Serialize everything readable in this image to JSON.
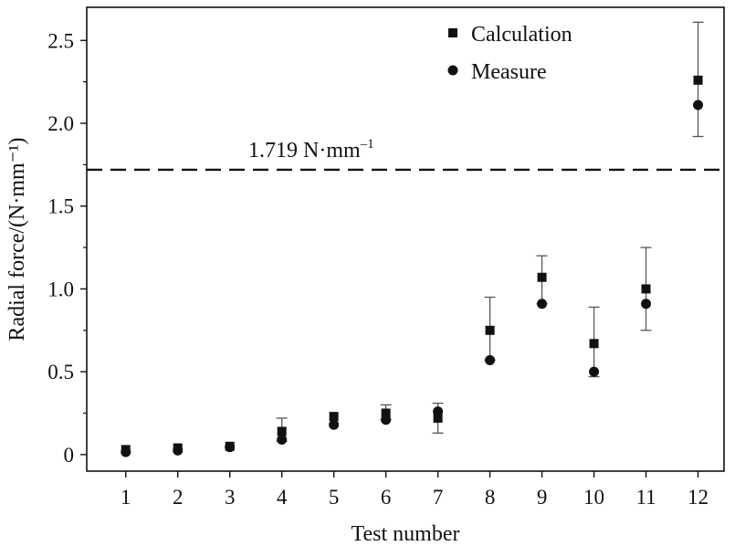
{
  "chart_data": {
    "type": "scatter",
    "title": "",
    "xlabel": "Test number",
    "ylabel": "Radial force/(N·mm⁻¹)",
    "xlim": [
      0.25,
      12.5
    ],
    "ylim": [
      -0.1,
      2.7
    ],
    "x_ticks": [
      1,
      2,
      3,
      4,
      5,
      6,
      7,
      8,
      9,
      10,
      11,
      12
    ],
    "x_tick_labels": [
      "1",
      "2",
      "3",
      "4",
      "5",
      "6",
      "7",
      "8",
      "9",
      "10",
      "11",
      "12"
    ],
    "y_ticks": [
      0,
      0.5,
      1.0,
      1.5,
      2.0,
      2.5
    ],
    "y_tick_labels": [
      "0",
      "0.5",
      "1.0",
      "1.5",
      "2.0",
      "2.5"
    ],
    "grid": false,
    "legend_position": "top-right",
    "series": [
      {
        "name": "Calculation",
        "marker": "square",
        "x": [
          1,
          2,
          3,
          4,
          5,
          6,
          7,
          8,
          9,
          10,
          11,
          12
        ],
        "values": [
          0.03,
          0.04,
          0.05,
          0.14,
          0.23,
          0.25,
          0.22,
          0.75,
          1.07,
          0.67,
          1.0,
          2.26
        ],
        "error_upper": [
          null,
          null,
          null,
          0.22,
          null,
          0.3,
          0.31,
          0.95,
          1.2,
          0.89,
          1.25,
          2.61
        ],
        "error_lower": [
          null,
          null,
          null,
          0.08,
          null,
          0.21,
          0.13,
          0.57,
          0.91,
          0.47,
          0.75,
          1.92
        ]
      },
      {
        "name": "Measure",
        "marker": "circle",
        "x": [
          1,
          2,
          3,
          4,
          5,
          6,
          7,
          8,
          9,
          10,
          11,
          12
        ],
        "values": [
          0.015,
          0.025,
          0.045,
          0.09,
          0.18,
          0.21,
          0.26,
          0.57,
          0.91,
          0.5,
          0.91,
          2.11
        ]
      }
    ],
    "reference_line": {
      "value": 1.719,
      "style": "dashed",
      "label_main": "1.719 N·mm",
      "label_sup": "–1"
    }
  }
}
